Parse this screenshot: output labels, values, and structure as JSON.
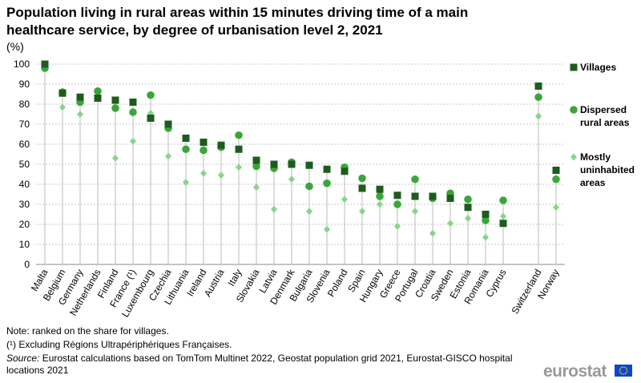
{
  "title": "Population living in rural areas within 15 minutes driving time of a main healthcare service, by degree of urbanisation level 2, 2021",
  "unit_label": "(%)",
  "notes": {
    "ranking": "Note: ranked on the share for villages.",
    "footnote": "(¹) Excluding Régions Ultrapériphériques Françaises.",
    "source_label": "Source:",
    "source_text": "Eurostat calculations based on TomTom Multinet 2022, Geostat population grid 2021, Eurostat-GISCO hospital locations 2021"
  },
  "brand": "eurostat",
  "colors": {
    "villages": "#1e5c1e",
    "dispersed": "#3aa63a",
    "mostly_uninhabited": "#8ad48a",
    "stem": "#bbbbbb",
    "grid": "#c8c8c8",
    "eu_flag": "#0e47cb",
    "eu_stars": "#ffde00"
  },
  "chart_data": {
    "type": "scatter",
    "categories": [
      "Malta",
      "Belgium",
      "Germany",
      "Netherlands",
      "Finland",
      "France (¹)",
      "Luxembourg",
      "Czechia",
      "Lithuania",
      "Ireland",
      "Austria",
      "Italy",
      "Slovakia",
      "Latvia",
      "Denmark",
      "Bulgaria",
      "Slovenia",
      "Poland",
      "Spain",
      "Hungary",
      "Greece",
      "Portugal",
      "Croatia",
      "Sweden",
      "Estonia",
      "Romania",
      "Cyprus",
      "",
      "Switzerland",
      "Norway"
    ],
    "series": [
      {
        "name": "Villages",
        "marker": "square",
        "values": [
          100,
          85.5,
          83.5,
          83,
          82,
          81,
          73,
          70,
          63,
          61,
          59.5,
          57.5,
          52,
          50,
          50,
          49.5,
          47.5,
          46.5,
          38,
          37.5,
          34.5,
          34,
          34,
          33,
          28.5,
          25,
          20.5,
          null,
          89,
          47
        ]
      },
      {
        "name": "Dispersed rural areas",
        "marker": "circle",
        "values": [
          98,
          86,
          81,
          86.5,
          78,
          76,
          84.5,
          68,
          57.5,
          57,
          58.5,
          64.5,
          49,
          48,
          51,
          39,
          40.5,
          48.5,
          43,
          34,
          30,
          42.5,
          33,
          35.5,
          32.5,
          22,
          32,
          null,
          83.5,
          42.5
        ]
      },
      {
        "name": "Mostly uninhabited areas",
        "marker": "diamond",
        "values": [
          97.5,
          78.5,
          75,
          83,
          53,
          61.5,
          75.5,
          54,
          41,
          45.5,
          44.5,
          48.5,
          38.5,
          27.5,
          42.5,
          26.5,
          17.5,
          32.5,
          26.5,
          30,
          19,
          26.5,
          15.5,
          20.5,
          23,
          13.5,
          24,
          null,
          74,
          28.5
        ]
      }
    ],
    "xlabel": "",
    "ylabel": "(%)",
    "ylim": [
      0,
      100
    ],
    "yticks": [
      0,
      10,
      20,
      30,
      40,
      50,
      60,
      70,
      80,
      90,
      100
    ],
    "grid": true,
    "legend_position": "right",
    "legend_labels": [
      "Villages",
      "Dispersed\nrural areas",
      "Mostly\nuninhabited\nareas"
    ]
  }
}
